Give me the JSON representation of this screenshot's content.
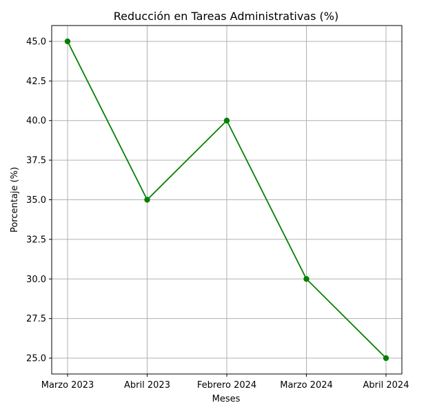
{
  "chart_data": {
    "type": "line",
    "title": "Reducción en Tareas Administrativas (%)",
    "xlabel": "Meses",
    "ylabel": "Porcentaje (%)",
    "categories": [
      "Marzo 2023",
      "Abril 2023",
      "Febrero 2024",
      "Marzo 2024",
      "Abril 2024"
    ],
    "values": [
      45.0,
      35.0,
      40.0,
      30.0,
      25.0
    ],
    "ylim": [
      24.0,
      46.0
    ],
    "yticks": [
      "25.0",
      "27.5",
      "30.0",
      "32.5",
      "35.0",
      "37.5",
      "40.0",
      "42.5",
      "45.0"
    ],
    "grid": true,
    "line_color": "#008000",
    "marker": "circle"
  }
}
